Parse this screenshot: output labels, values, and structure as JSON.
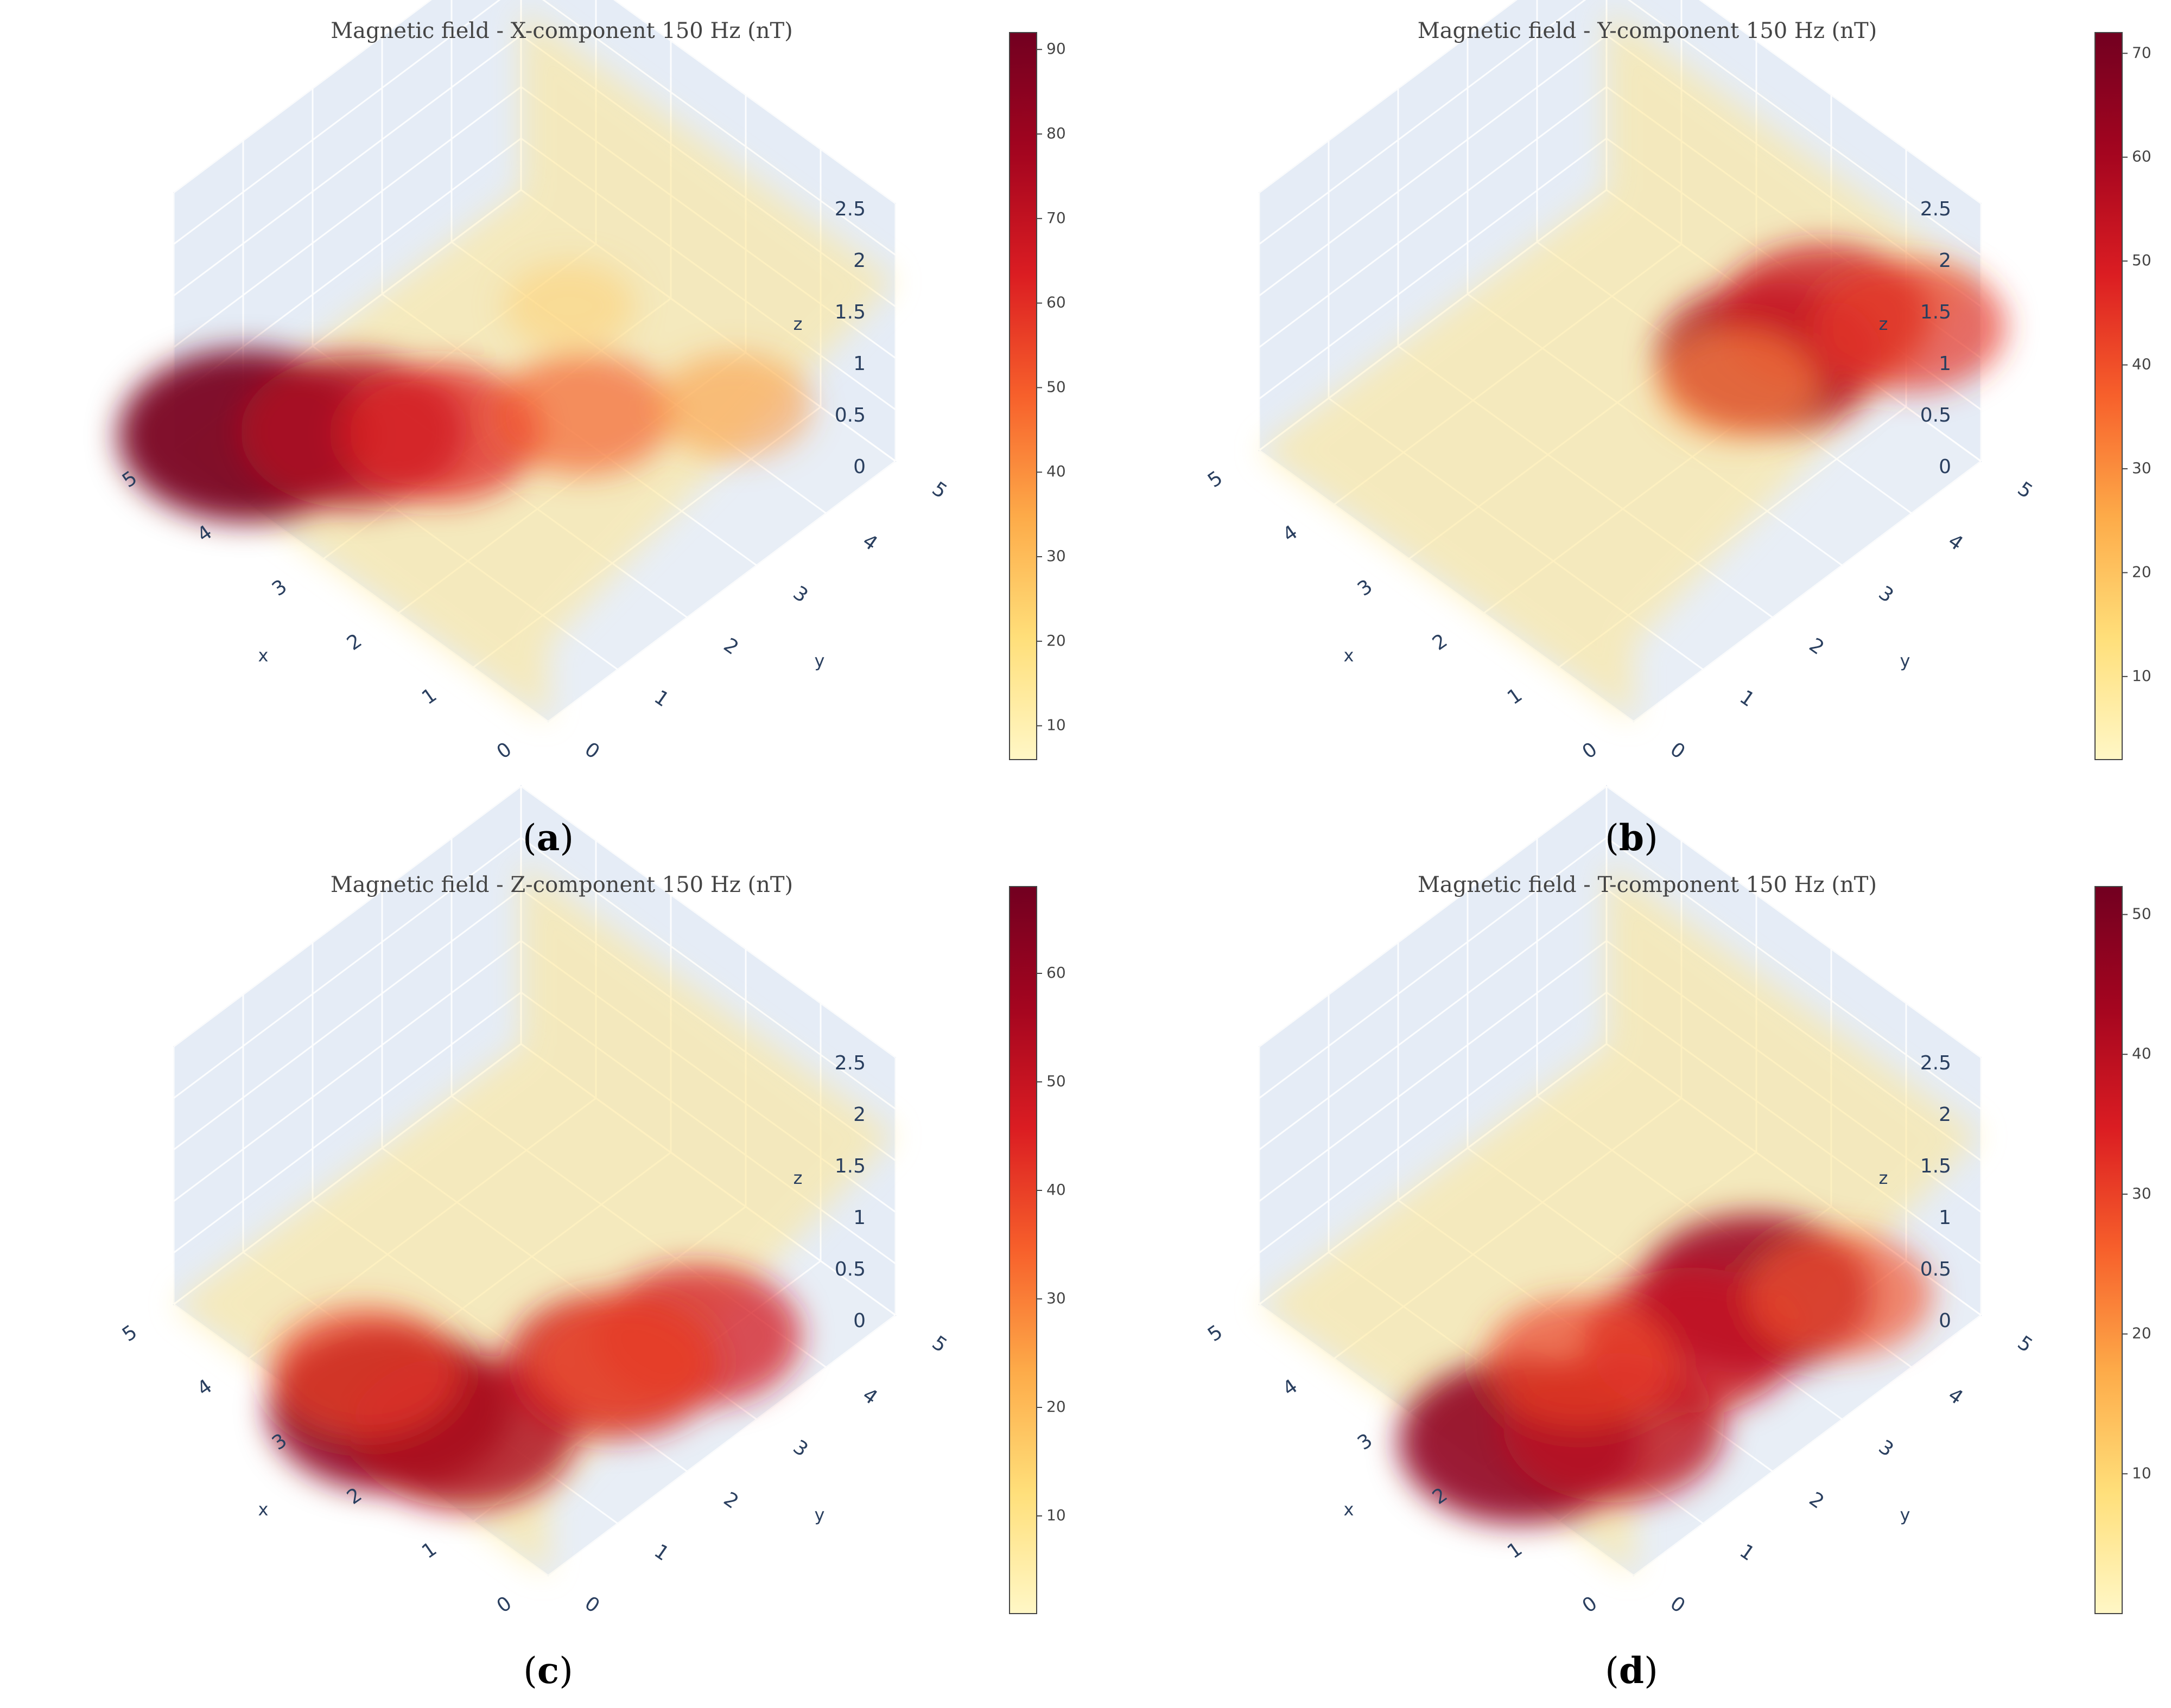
{
  "chart_data": [
    {
      "type": "volume3d",
      "title": "Magnetic field - X-component 150 Hz (nT)",
      "caption_letter": "a",
      "xlabel": "x",
      "ylabel": "y",
      "zlabel": "z",
      "x_ticks": [
        "0",
        "1",
        "2",
        "3",
        "4",
        "5"
      ],
      "y_ticks": [
        "0",
        "1",
        "2",
        "3",
        "4",
        "5"
      ],
      "z_ticks": [
        "0",
        "0.5",
        "1",
        "1.5",
        "2",
        "2.5"
      ],
      "xlim": [
        0,
        5
      ],
      "ylim": [
        0,
        5
      ],
      "zlim": [
        0,
        2.5
      ],
      "colorbar": {
        "min": 6,
        "max": 92,
        "ticks": [
          "10",
          "20",
          "30",
          "40",
          "50",
          "60",
          "70",
          "80",
          "90"
        ]
      },
      "colorscale": [
        "#fff7c6",
        "#ffdf7a",
        "#fdab49",
        "#f7602b",
        "#db1d22",
        "#a4051f",
        "#720020"
      ],
      "hotspots": [
        {
          "x": 4.6,
          "y": 0.6,
          "z": 0.05,
          "value": 90
        },
        {
          "x": 3.9,
          "y": 1.4,
          "z": 0.05,
          "value": 75
        },
        {
          "x": 3.3,
          "y": 2.0,
          "z": 0.05,
          "value": 62
        },
        {
          "x": 2.5,
          "y": 3.2,
          "z": 0.05,
          "value": 50
        },
        {
          "x": 1.5,
          "y": 4.3,
          "z": 0.1,
          "value": 38
        },
        {
          "x": 2.5,
          "y": 3.0,
          "z": 1.2,
          "value": 25
        }
      ]
    },
    {
      "type": "volume3d",
      "title": "Magnetic field - Y-component 150 Hz (nT)",
      "caption_letter": "b",
      "xlabel": "x",
      "ylabel": "y",
      "zlabel": "z",
      "x_ticks": [
        "0",
        "1",
        "2",
        "3",
        "4",
        "5"
      ],
      "y_ticks": [
        "0",
        "1",
        "2",
        "3",
        "4",
        "5"
      ],
      "z_ticks": [
        "0",
        "0.5",
        "1",
        "1.5",
        "2",
        "2.5"
      ],
      "xlim": [
        0,
        5
      ],
      "ylim": [
        0,
        5
      ],
      "zlim": [
        0,
        2.5
      ],
      "colorbar": {
        "min": 2,
        "max": 72,
        "ticks": [
          "10",
          "20",
          "30",
          "40",
          "50",
          "60",
          "70"
        ]
      },
      "colorscale": [
        "#fff7c6",
        "#ffdf7a",
        "#fdab49",
        "#f7602b",
        "#db1d22",
        "#a4051f",
        "#720020"
      ],
      "hotspots": [
        {
          "x": 0.6,
          "y": 2.6,
          "z": 1.9,
          "value": 58
        },
        {
          "x": 0.8,
          "y": 3.6,
          "z": 1.7,
          "value": 52
        },
        {
          "x": 0.4,
          "y": 4.4,
          "z": 1.4,
          "value": 44
        },
        {
          "x": 0.3,
          "y": 1.8,
          "z": 2.2,
          "value": 30
        }
      ]
    },
    {
      "type": "volume3d",
      "title": "Magnetic field - Z-component 150 Hz (nT)",
      "caption_letter": "c",
      "xlabel": "x",
      "ylabel": "y",
      "zlabel": "z",
      "x_ticks": [
        "0",
        "1",
        "2",
        "3",
        "4",
        "5"
      ],
      "y_ticks": [
        "0",
        "1",
        "2",
        "3",
        "4",
        "5"
      ],
      "z_ticks": [
        "0",
        "0.5",
        "1",
        "1.5",
        "2",
        "2.5"
      ],
      "xlim": [
        0,
        5
      ],
      "ylim": [
        0,
        5
      ],
      "zlim": [
        0,
        2.5
      ],
      "colorbar": {
        "min": 1,
        "max": 68,
        "ticks": [
          "10",
          "20",
          "30",
          "40",
          "50",
          "60"
        ]
      },
      "colorscale": [
        "#fff7c6",
        "#ffdf7a",
        "#fdab49",
        "#f7602b",
        "#db1d22",
        "#a4051f",
        "#720020"
      ],
      "hotspots": [
        {
          "x": 2.4,
          "y": 0.3,
          "z": 0.2,
          "value": 62
        },
        {
          "x": 1.6,
          "y": 0.5,
          "z": 0.3,
          "value": 55
        },
        {
          "x": 1.0,
          "y": 2.0,
          "z": 0.5,
          "value": 50
        },
        {
          "x": 0.6,
          "y": 2.8,
          "z": 0.6,
          "value": 47
        },
        {
          "x": 0.5,
          "y": 1.6,
          "z": 1.0,
          "value": 38
        },
        {
          "x": 3.0,
          "y": 0.6,
          "z": 0.1,
          "value": 40
        }
      ]
    },
    {
      "type": "volume3d",
      "title": "Magnetic field - T-component 150 Hz (nT)",
      "caption_letter": "d",
      "xlabel": "x",
      "ylabel": "y",
      "zlabel": "z",
      "x_ticks": [
        "0",
        "1",
        "2",
        "3",
        "4",
        "5"
      ],
      "y_ticks": [
        "0",
        "1",
        "2",
        "3",
        "4",
        "5"
      ],
      "z_ticks": [
        "0",
        "0.5",
        "1",
        "1.5",
        "2",
        "2.5"
      ],
      "xlim": [
        0,
        5
      ],
      "ylim": [
        0,
        5
      ],
      "zlim": [
        0,
        2.5
      ],
      "colorbar": {
        "min": 0,
        "max": 52,
        "ticks": [
          "10",
          "20",
          "30",
          "40",
          "50"
        ]
      },
      "colorscale": [
        "#fff7c6",
        "#ffdf7a",
        "#fdab49",
        "#f7602b",
        "#db1d22",
        "#a4051f",
        "#720020"
      ],
      "hotspots": [
        {
          "x": 1.8,
          "y": 0.3,
          "z": 0.2,
          "value": 47
        },
        {
          "x": 0.6,
          "y": 2.4,
          "z": 1.2,
          "value": 45
        },
        {
          "x": 1.1,
          "y": 0.9,
          "z": 0.4,
          "value": 40
        },
        {
          "x": 0.9,
          "y": 1.8,
          "z": 0.9,
          "value": 38
        },
        {
          "x": 2.2,
          "y": 1.6,
          "z": 0.1,
          "value": 30
        },
        {
          "x": 0.3,
          "y": 3.3,
          "z": 0.9,
          "value": 28
        }
      ]
    }
  ]
}
